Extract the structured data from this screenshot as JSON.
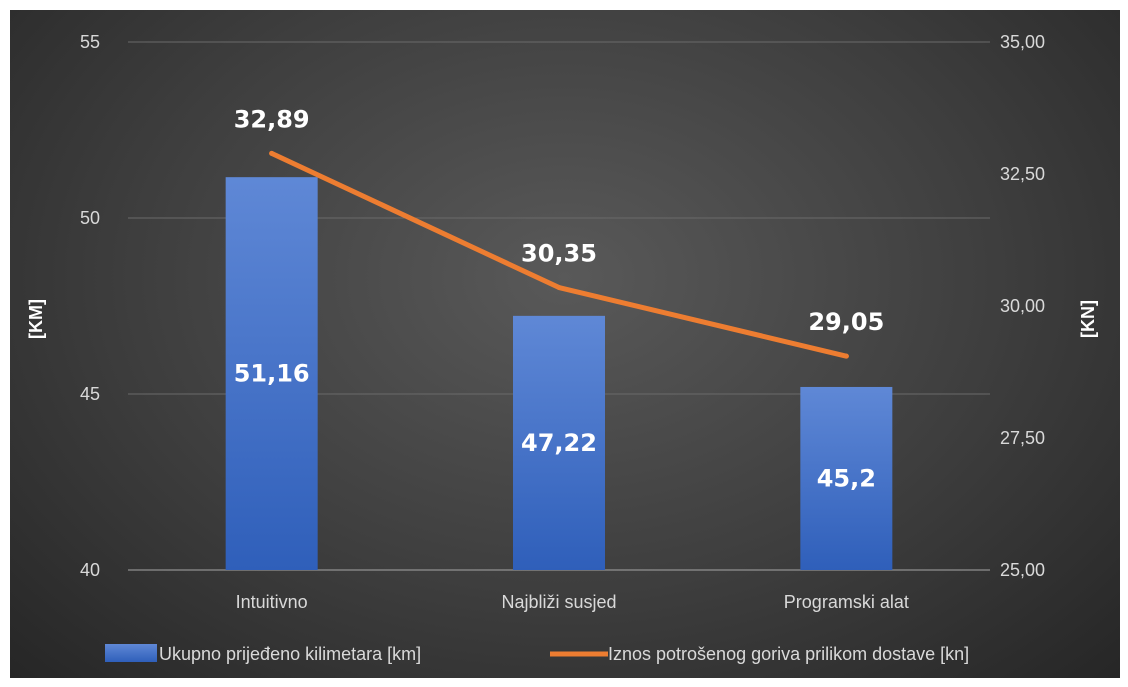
{
  "chart_data": {
    "type": "bar",
    "categories": [
      "Intuitivno",
      "Najbliži susjed",
      "Programski alat"
    ],
    "series": [
      {
        "name": "Ukupno prijeđeno kilimetara [km]",
        "type": "bar",
        "axis": "left",
        "values": [
          51.16,
          47.22,
          45.2
        ],
        "labels": [
          "51,16",
          "47,22",
          "45,2"
        ],
        "color": "#4472c4"
      },
      {
        "name": "Iznos potrošenog goriva prilikom dostave [kn]",
        "type": "line",
        "axis": "right",
        "values": [
          32.89,
          30.35,
          29.05
        ],
        "labels": [
          "32,89",
          "30,35",
          "29,05"
        ],
        "color": "#ed7d31"
      }
    ],
    "ylabel": "[KM]",
    "y2label": "[KN]",
    "ylim": [
      40,
      55
    ],
    "yticks": [
      "40",
      "45",
      "50",
      "55"
    ],
    "y2lim": [
      25,
      35
    ],
    "y2ticks": [
      "25,00",
      "27,50",
      "30,00",
      "32,50",
      "35,00"
    ],
    "grid": true,
    "legend": "bottom"
  }
}
